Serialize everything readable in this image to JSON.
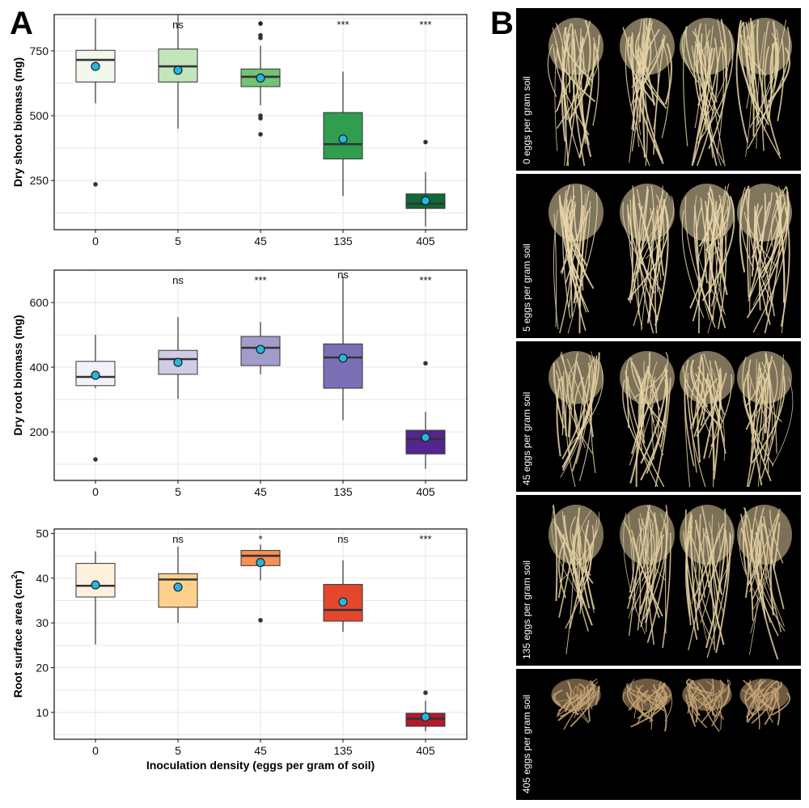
{
  "panel_letters": {
    "a": "A",
    "b": "B"
  },
  "chart_data": [
    {
      "type": "box",
      "id": "shoot",
      "ylabel": "Dry shoot biomass (mg)",
      "xlabel": "",
      "categories": [
        "0",
        "5",
        "45",
        "135",
        "405"
      ],
      "ylim": [
        60,
        890
      ],
      "yticks": [
        250,
        500,
        750
      ],
      "fills": [
        "#f1f9ec",
        "#c3e5bb",
        "#74c274",
        "#2f9e4f",
        "#0f6a37"
      ],
      "boxes": [
        {
          "q1": 630,
          "median": 715,
          "q3": 752,
          "lo": 548,
          "hi": 875,
          "mean": 690,
          "outliers": [
            235
          ],
          "sig": ""
        },
        {
          "q1": 630,
          "median": 690,
          "q3": 757,
          "lo": 450,
          "hi": 890,
          "mean": 675,
          "outliers": [],
          "sig": "ns"
        },
        {
          "q1": 612,
          "median": 650,
          "q3": 680,
          "lo": 540,
          "hi": 770,
          "mean": 645,
          "outliers": [
            855,
            810,
            800,
            500,
            490,
            428
          ],
          "sig": "*"
        },
        {
          "q1": 333,
          "median": 390,
          "q3": 512,
          "lo": 190,
          "hi": 670,
          "mean": 410,
          "outliers": [],
          "sig": "***"
        },
        {
          "q1": 142,
          "median": 160,
          "q3": 198,
          "lo": 72,
          "hi": 282,
          "mean": 172,
          "outliers": [
            398
          ],
          "sig": "***"
        }
      ]
    },
    {
      "type": "box",
      "id": "root",
      "ylabel": "Dry root biomass (mg)",
      "xlabel": "",
      "categories": [
        "0",
        "5",
        "45",
        "135",
        "405"
      ],
      "ylim": [
        50,
        700
      ],
      "yticks": [
        200,
        400,
        600
      ],
      "fills": [
        "#f3f1f8",
        "#cfcde5",
        "#a19cca",
        "#7b70b5",
        "#53268f"
      ],
      "boxes": [
        {
          "q1": 343,
          "median": 370,
          "q3": 418,
          "lo": 335,
          "hi": 500,
          "mean": 375,
          "outliers": [
            115
          ],
          "sig": ""
        },
        {
          "q1": 378,
          "median": 425,
          "q3": 452,
          "lo": 302,
          "hi": 555,
          "mean": 415,
          "outliers": [],
          "sig": "ns"
        },
        {
          "q1": 405,
          "median": 460,
          "q3": 495,
          "lo": 378,
          "hi": 540,
          "mean": 455,
          "outliers": [],
          "sig": "***"
        },
        {
          "q1": 335,
          "median": 430,
          "q3": 472,
          "lo": 236,
          "hi": 680,
          "mean": 428,
          "outliers": [],
          "sig": "ns"
        },
        {
          "q1": 132,
          "median": 178,
          "q3": 205,
          "lo": 86,
          "hi": 262,
          "mean": 183,
          "outliers": [
            412
          ],
          "sig": "***"
        }
      ]
    },
    {
      "type": "box",
      "id": "surface",
      "ylabel": "Root surface area (cm",
      "ylabel_sup": "2",
      "ylabel_end": ")",
      "xlabel": "Inoculation density (eggs per gram of soil)",
      "categories": [
        "0",
        "5",
        "45",
        "135",
        "405"
      ],
      "ylim": [
        4,
        51
      ],
      "yticks": [
        10,
        20,
        30,
        40,
        50
      ],
      "fills": [
        "#fff1de",
        "#fdd08c",
        "#f98f52",
        "#e4472c",
        "#b5192b"
      ],
      "boxes": [
        {
          "q1": 35.8,
          "median": 38.3,
          "q3": 43.3,
          "lo": 25.2,
          "hi": 46.0,
          "mean": 38.5,
          "outliers": [],
          "sig": ""
        },
        {
          "q1": 33.5,
          "median": 39.7,
          "q3": 41.0,
          "lo": 30.0,
          "hi": 47.0,
          "mean": 38.0,
          "outliers": [],
          "sig": "ns"
        },
        {
          "q1": 42.8,
          "median": 45.0,
          "q3": 46.2,
          "lo": 39.5,
          "hi": 47.5,
          "mean": 43.5,
          "outliers": [
            30.6
          ],
          "sig": "*"
        },
        {
          "q1": 30.4,
          "median": 32.9,
          "q3": 38.6,
          "lo": 28.0,
          "hi": 44.0,
          "mean": 34.7,
          "outliers": [],
          "sig": "ns"
        },
        {
          "q1": 6.9,
          "median": 8.6,
          "q3": 9.8,
          "lo": 5.8,
          "hi": 12.6,
          "mean": 9.0,
          "outliers": [
            14.4
          ],
          "sig": "***"
        }
      ]
    }
  ],
  "photos": [
    {
      "label": "0 eggs per gram soil",
      "tone": "#e6d3a6"
    },
    {
      "label": "5 eggs per gram soil",
      "tone": "#ead7aa"
    },
    {
      "label": "45 eggs per gram soil",
      "tone": "#e4d0a2"
    },
    {
      "label": "135 eggs per gram soil",
      "tone": "#e2cea0"
    },
    {
      "label": "405 eggs per gram soil",
      "tone": "#c7a477"
    }
  ]
}
